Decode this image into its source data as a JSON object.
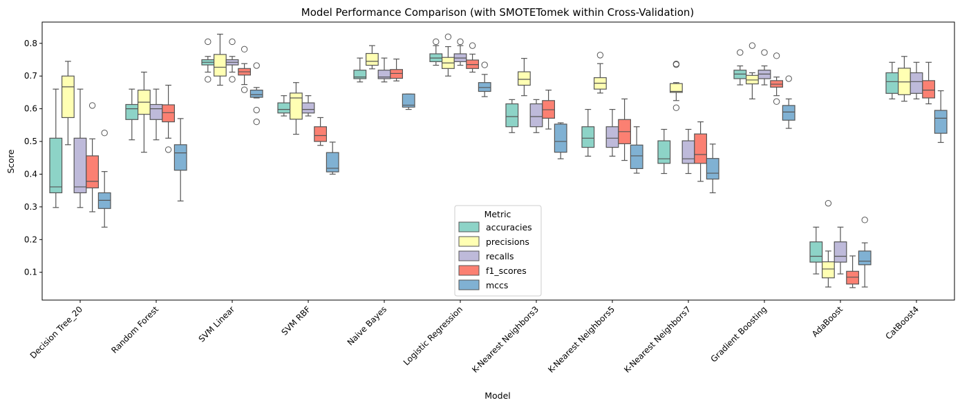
{
  "chart_data": {
    "type": "box",
    "title": "Model Performance Comparison (with SMOTETomek within Cross-Validation)",
    "xlabel": "Model",
    "ylabel": "Score",
    "ylim": [
      0.015,
      0.865
    ],
    "yticks": [
      0.1,
      0.2,
      0.3,
      0.4,
      0.5,
      0.6,
      0.7,
      0.8
    ],
    "ytick_labels": [
      "0.1",
      "0.2",
      "0.3",
      "0.4",
      "0.5",
      "0.6",
      "0.7",
      "0.8"
    ],
    "categories": [
      "Decision Tree_20",
      "Random Forest",
      "SVM Linear",
      "SVM RBF",
      "Naive Bayes",
      "Logistic Regression",
      "K-Nearest Neighbors3",
      "K-Nearest Neighbors5",
      "K-Nearest Neighbors7",
      "Gradient Boosting",
      "AdaBoost",
      "CatBoost4"
    ],
    "legend": {
      "title": "Metric",
      "location": "lower center"
    },
    "series": [
      {
        "name": "accuracies",
        "color": "#8dd3c7",
        "boxes": [
          {
            "whislo": 0.298,
            "q1": 0.343,
            "med": 0.361,
            "q3": 0.51,
            "whishi": 0.66,
            "fliers": []
          },
          {
            "whislo": 0.505,
            "q1": 0.567,
            "med": 0.6,
            "q3": 0.613,
            "whishi": 0.66,
            "fliers": []
          },
          {
            "whislo": 0.712,
            "q1": 0.734,
            "med": 0.742,
            "q3": 0.75,
            "whishi": 0.76,
            "fliers": [
              0.69,
              0.805
            ]
          },
          {
            "whislo": 0.578,
            "q1": 0.587,
            "med": 0.598,
            "q3": 0.618,
            "whishi": 0.64,
            "fliers": []
          },
          {
            "whislo": 0.682,
            "q1": 0.692,
            "med": 0.697,
            "q3": 0.718,
            "whishi": 0.755,
            "fliers": []
          },
          {
            "whislo": 0.733,
            "q1": 0.744,
            "med": 0.755,
            "q3": 0.768,
            "whishi": 0.793,
            "fliers": [
              0.805
            ]
          },
          {
            "whislo": 0.527,
            "q1": 0.545,
            "med": 0.576,
            "q3": 0.615,
            "whishi": 0.628,
            "fliers": []
          },
          {
            "whislo": 0.455,
            "q1": 0.482,
            "med": 0.51,
            "q3": 0.545,
            "whishi": 0.598,
            "fliers": []
          },
          {
            "whislo": 0.402,
            "q1": 0.433,
            "med": 0.447,
            "q3": 0.502,
            "whishi": 0.537,
            "fliers": []
          },
          {
            "whislo": 0.673,
            "q1": 0.692,
            "med": 0.706,
            "q3": 0.718,
            "whishi": 0.731,
            "fliers": [
              0.772
            ]
          },
          {
            "whislo": 0.095,
            "q1": 0.131,
            "med": 0.149,
            "q3": 0.193,
            "whishi": 0.238,
            "fliers": []
          },
          {
            "whislo": 0.63,
            "q1": 0.647,
            "med": 0.683,
            "q3": 0.71,
            "whishi": 0.742,
            "fliers": []
          }
        ]
      },
      {
        "name": "precisions",
        "color": "#ffffb3",
        "boxes": [
          {
            "whislo": 0.49,
            "q1": 0.573,
            "med": 0.667,
            "q3": 0.7,
            "whishi": 0.745,
            "fliers": []
          },
          {
            "whislo": 0.467,
            "q1": 0.583,
            "med": 0.62,
            "q3": 0.657,
            "whishi": 0.712,
            "fliers": []
          },
          {
            "whislo": 0.672,
            "q1": 0.7,
            "med": 0.727,
            "q3": 0.766,
            "whishi": 0.828,
            "fliers": []
          },
          {
            "whislo": 0.522,
            "q1": 0.568,
            "med": 0.633,
            "q3": 0.648,
            "whishi": 0.68,
            "fliers": []
          },
          {
            "whislo": 0.722,
            "q1": 0.733,
            "med": 0.745,
            "q3": 0.769,
            "whishi": 0.793,
            "fliers": []
          },
          {
            "whislo": 0.7,
            "q1": 0.723,
            "med": 0.74,
            "q3": 0.757,
            "whishi": 0.79,
            "fliers": [
              0.82
            ]
          },
          {
            "whislo": 0.64,
            "q1": 0.672,
            "med": 0.69,
            "q3": 0.713,
            "whishi": 0.754,
            "fliers": []
          },
          {
            "whislo": 0.648,
            "q1": 0.66,
            "med": 0.678,
            "q3": 0.695,
            "whishi": 0.738,
            "fliers": [
              0.764
            ]
          },
          {
            "whislo": 0.625,
            "q1": 0.65,
            "med": 0.653,
            "q3": 0.677,
            "whishi": 0.68,
            "fliers": [
              0.603,
              0.735,
              0.737
            ]
          },
          {
            "whislo": 0.63,
            "q1": 0.676,
            "med": 0.688,
            "q3": 0.702,
            "whishi": 0.71,
            "fliers": [
              0.793
            ]
          },
          {
            "whislo": 0.055,
            "q1": 0.083,
            "med": 0.11,
            "q3": 0.132,
            "whishi": 0.165,
            "fliers": [
              0.311
            ]
          },
          {
            "whislo": 0.623,
            "q1": 0.643,
            "med": 0.682,
            "q3": 0.724,
            "whishi": 0.76,
            "fliers": []
          }
        ]
      },
      {
        "name": "recalls",
        "color": "#bebada",
        "boxes": [
          {
            "whislo": 0.298,
            "q1": 0.343,
            "med": 0.361,
            "q3": 0.51,
            "whishi": 0.66,
            "fliers": []
          },
          {
            "whislo": 0.505,
            "q1": 0.567,
            "med": 0.6,
            "q3": 0.613,
            "whishi": 0.66,
            "fliers": []
          },
          {
            "whislo": 0.712,
            "q1": 0.734,
            "med": 0.742,
            "q3": 0.75,
            "whishi": 0.76,
            "fliers": [
              0.69,
              0.805
            ]
          },
          {
            "whislo": 0.578,
            "q1": 0.587,
            "med": 0.598,
            "q3": 0.618,
            "whishi": 0.64,
            "fliers": []
          },
          {
            "whislo": 0.682,
            "q1": 0.692,
            "med": 0.697,
            "q3": 0.718,
            "whishi": 0.755,
            "fliers": []
          },
          {
            "whislo": 0.733,
            "q1": 0.744,
            "med": 0.755,
            "q3": 0.768,
            "whishi": 0.793,
            "fliers": [
              0.805
            ]
          },
          {
            "whislo": 0.527,
            "q1": 0.545,
            "med": 0.576,
            "q3": 0.615,
            "whishi": 0.628,
            "fliers": []
          },
          {
            "whislo": 0.455,
            "q1": 0.482,
            "med": 0.51,
            "q3": 0.545,
            "whishi": 0.598,
            "fliers": []
          },
          {
            "whislo": 0.402,
            "q1": 0.433,
            "med": 0.447,
            "q3": 0.502,
            "whishi": 0.537,
            "fliers": []
          },
          {
            "whislo": 0.673,
            "q1": 0.692,
            "med": 0.706,
            "q3": 0.718,
            "whishi": 0.731,
            "fliers": [
              0.772
            ]
          },
          {
            "whislo": 0.095,
            "q1": 0.131,
            "med": 0.149,
            "q3": 0.193,
            "whishi": 0.238,
            "fliers": []
          },
          {
            "whislo": 0.63,
            "q1": 0.647,
            "med": 0.683,
            "q3": 0.71,
            "whishi": 0.742,
            "fliers": []
          }
        ]
      },
      {
        "name": "f1_scores",
        "color": "#fb8072",
        "boxes": [
          {
            "whislo": 0.285,
            "q1": 0.358,
            "med": 0.378,
            "q3": 0.456,
            "whishi": 0.508,
            "fliers": [
              0.61
            ]
          },
          {
            "whislo": 0.51,
            "q1": 0.56,
            "med": 0.588,
            "q3": 0.612,
            "whishi": 0.672,
            "fliers": [
              0.475
            ]
          },
          {
            "whislo": 0.674,
            "q1": 0.703,
            "med": 0.713,
            "q3": 0.723,
            "whishi": 0.738,
            "fliers": [
              0.658,
              0.782
            ]
          },
          {
            "whislo": 0.488,
            "q1": 0.5,
            "med": 0.518,
            "q3": 0.545,
            "whishi": 0.573,
            "fliers": []
          },
          {
            "whislo": 0.685,
            "q1": 0.693,
            "med": 0.708,
            "q3": 0.72,
            "whishi": 0.752,
            "fliers": []
          },
          {
            "whislo": 0.712,
            "q1": 0.723,
            "med": 0.735,
            "q3": 0.749,
            "whishi": 0.767,
            "fliers": [
              0.793
            ]
          },
          {
            "whislo": 0.538,
            "q1": 0.571,
            "med": 0.597,
            "q3": 0.625,
            "whishi": 0.657,
            "fliers": []
          },
          {
            "whislo": 0.442,
            "q1": 0.493,
            "med": 0.53,
            "q3": 0.567,
            "whishi": 0.63,
            "fliers": []
          },
          {
            "whislo": 0.378,
            "q1": 0.433,
            "med": 0.46,
            "q3": 0.523,
            "whishi": 0.56,
            "fliers": []
          },
          {
            "whislo": 0.64,
            "q1": 0.666,
            "med": 0.675,
            "q3": 0.686,
            "whishi": 0.697,
            "fliers": [
              0.622,
              0.762
            ]
          },
          {
            "whislo": 0.053,
            "q1": 0.064,
            "med": 0.085,
            "q3": 0.103,
            "whishi": 0.15,
            "fliers": []
          },
          {
            "whislo": 0.615,
            "q1": 0.633,
            "med": 0.657,
            "q3": 0.686,
            "whishi": 0.742,
            "fliers": []
          }
        ]
      },
      {
        "name": "mccs",
        "color": "#80b1d3",
        "boxes": [
          {
            "whislo": 0.238,
            "q1": 0.295,
            "med": 0.32,
            "q3": 0.343,
            "whishi": 0.408,
            "fliers": [
              0.526
            ]
          },
          {
            "whislo": 0.318,
            "q1": 0.412,
            "med": 0.465,
            "q3": 0.49,
            "whishi": 0.57,
            "fliers": []
          },
          {
            "whislo": 0.633,
            "q1": 0.635,
            "med": 0.643,
            "q3": 0.657,
            "whishi": 0.665,
            "fliers": [
              0.56,
              0.596,
              0.732
            ]
          },
          {
            "whislo": 0.4,
            "q1": 0.407,
            "med": 0.418,
            "q3": 0.466,
            "whishi": 0.498,
            "fliers": []
          },
          {
            "whislo": 0.598,
            "q1": 0.605,
            "med": 0.611,
            "q3": 0.645,
            "whishi": 0.645,
            "fliers": []
          },
          {
            "whislo": 0.637,
            "q1": 0.653,
            "med": 0.665,
            "q3": 0.68,
            "whishi": 0.705,
            "fliers": [
              0.734
            ]
          },
          {
            "whislo": 0.447,
            "q1": 0.467,
            "med": 0.5,
            "q3": 0.553,
            "whishi": 0.557,
            "fliers": []
          },
          {
            "whislo": 0.403,
            "q1": 0.417,
            "med": 0.456,
            "q3": 0.489,
            "whishi": 0.545,
            "fliers": []
          },
          {
            "whislo": 0.343,
            "q1": 0.385,
            "med": 0.403,
            "q3": 0.448,
            "whishi": 0.492,
            "fliers": []
          },
          {
            "whislo": 0.54,
            "q1": 0.565,
            "med": 0.59,
            "q3": 0.61,
            "whishi": 0.63,
            "fliers": [
              0.692
            ]
          },
          {
            "whislo": 0.055,
            "q1": 0.123,
            "med": 0.134,
            "q3": 0.165,
            "whishi": 0.19,
            "fliers": [
              0.26
            ]
          },
          {
            "whislo": 0.497,
            "q1": 0.525,
            "med": 0.571,
            "q3": 0.595,
            "whishi": 0.655,
            "fliers": []
          }
        ]
      }
    ]
  }
}
